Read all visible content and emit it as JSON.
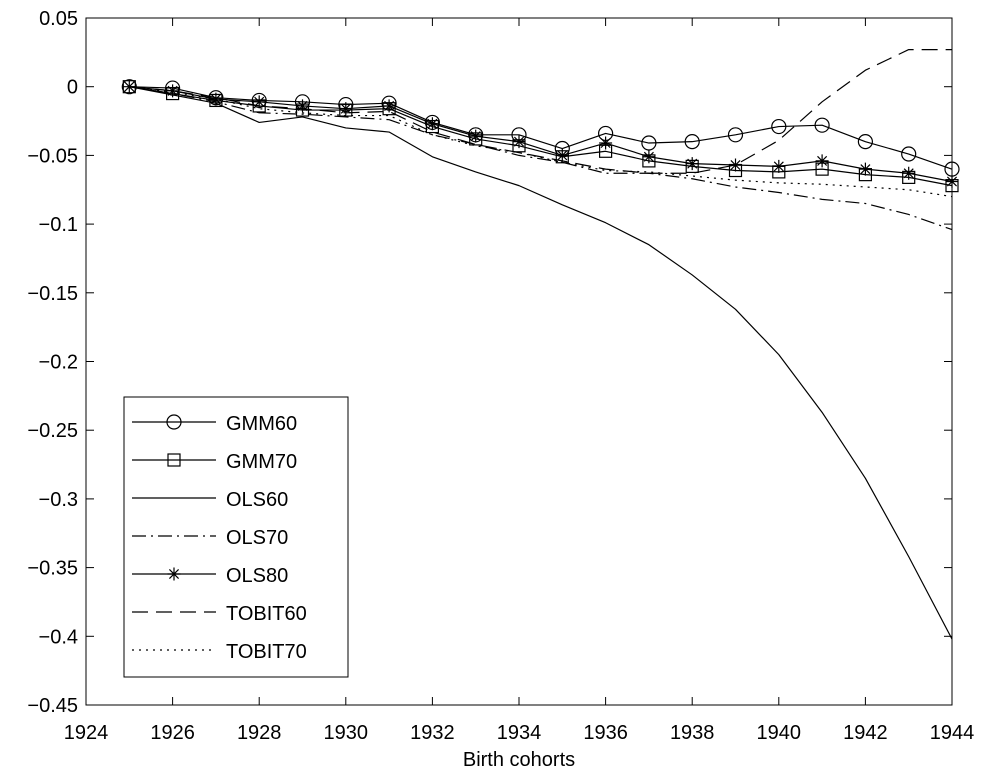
{
  "chart_data": {
    "type": "line",
    "title": "",
    "xlabel": "Birth cohorts",
    "ylabel": "",
    "xlim": [
      1924,
      1944
    ],
    "ylim": [
      -0.45,
      0.05
    ],
    "xticks": [
      1924,
      1926,
      1928,
      1930,
      1932,
      1934,
      1936,
      1938,
      1940,
      1942,
      1944
    ],
    "xtick_labels": [
      "1924",
      "1926",
      "1928",
      "1930",
      "1932",
      "1934",
      "1936",
      "1938",
      "1940",
      "1942",
      "1944"
    ],
    "yticks": [
      0.05,
      0,
      -0.05,
      -0.1,
      -0.15,
      -0.2,
      -0.25,
      -0.3,
      -0.35,
      -0.4,
      -0.45
    ],
    "ytick_labels": [
      "0.05",
      "0",
      "−0.05",
      "−0.1",
      "−0.15",
      "−0.2",
      "−0.25",
      "−0.3",
      "−0.35",
      "−0.4",
      "−0.45"
    ],
    "grid": false,
    "legend_position": "lower-left",
    "x": [
      1925,
      1926,
      1927,
      1928,
      1929,
      1930,
      1931,
      1932,
      1933,
      1934,
      1935,
      1936,
      1937,
      1938,
      1939,
      1940,
      1941,
      1942,
      1943,
      1944
    ],
    "series": [
      {
        "name": "GMM60",
        "line": "solid",
        "marker": "circle",
        "values": [
          0,
          -0.001,
          -0.008,
          -0.01,
          -0.011,
          -0.013,
          -0.012,
          -0.026,
          -0.035,
          -0.035,
          -0.045,
          -0.034,
          -0.041,
          -0.04,
          -0.035,
          -0.029,
          -0.028,
          -0.04,
          -0.049,
          -0.06
        ]
      },
      {
        "name": "GMM70",
        "line": "solid",
        "marker": "square",
        "values": [
          0,
          -0.005,
          -0.01,
          -0.014,
          -0.017,
          -0.017,
          -0.016,
          -0.029,
          -0.038,
          -0.043,
          -0.051,
          -0.047,
          -0.054,
          -0.058,
          -0.061,
          -0.062,
          -0.06,
          -0.064,
          -0.066,
          -0.072
        ]
      },
      {
        "name": "OLS60",
        "line": "solid",
        "marker": "none",
        "values": [
          0,
          -0.006,
          -0.012,
          -0.026,
          -0.022,
          -0.03,
          -0.033,
          -0.051,
          -0.062,
          -0.072,
          -0.086,
          -0.099,
          -0.115,
          -0.137,
          -0.162,
          -0.195,
          -0.237,
          -0.285,
          -0.342,
          -0.402
        ]
      },
      {
        "name": "OLS70",
        "line": "dashdot",
        "marker": "none",
        "values": [
          0,
          -0.005,
          -0.011,
          -0.019,
          -0.02,
          -0.022,
          -0.024,
          -0.035,
          -0.042,
          -0.05,
          -0.055,
          -0.063,
          -0.063,
          -0.067,
          -0.073,
          -0.077,
          -0.082,
          -0.085,
          -0.093,
          -0.104
        ]
      },
      {
        "name": "OLS80",
        "line": "solid",
        "marker": "star",
        "values": [
          0,
          -0.003,
          -0.009,
          -0.011,
          -0.014,
          -0.016,
          -0.014,
          -0.027,
          -0.036,
          -0.04,
          -0.05,
          -0.041,
          -0.051,
          -0.056,
          -0.057,
          -0.058,
          -0.054,
          -0.06,
          -0.063,
          -0.069
        ]
      },
      {
        "name": "TOBIT60",
        "line": "dashed",
        "marker": "none",
        "values": [
          0,
          -0.003,
          -0.008,
          -0.014,
          -0.016,
          -0.019,
          -0.018,
          -0.033,
          -0.042,
          -0.048,
          -0.054,
          -0.06,
          -0.063,
          -0.063,
          -0.057,
          -0.039,
          -0.011,
          0.012,
          0.027,
          0.027
        ]
      },
      {
        "name": "TOBIT70",
        "line": "dotted",
        "marker": "none",
        "values": [
          0,
          -0.004,
          -0.009,
          -0.016,
          -0.019,
          -0.021,
          -0.021,
          -0.035,
          -0.043,
          -0.048,
          -0.055,
          -0.061,
          -0.062,
          -0.065,
          -0.068,
          -0.07,
          -0.071,
          -0.073,
          -0.075,
          -0.08
        ]
      }
    ]
  }
}
